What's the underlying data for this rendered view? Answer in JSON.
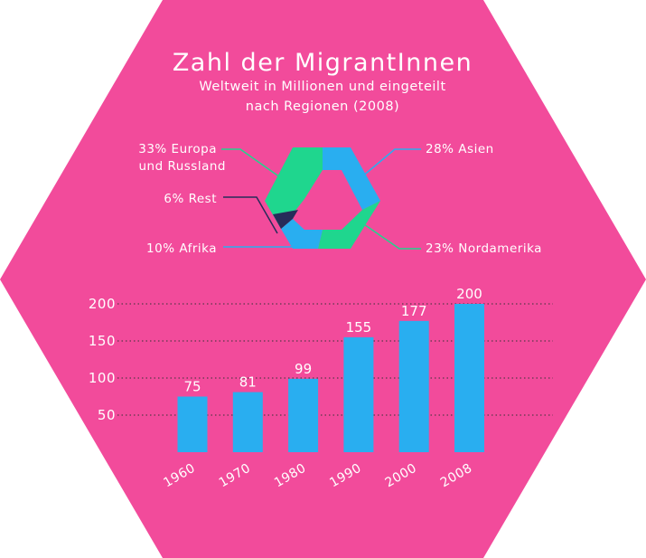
{
  "chart_data": [
    {
      "type": "donut",
      "title": "Zahl der MigrantInnen",
      "subtitle_lines": [
        "Weltweit in Millionen und eingeteilt",
        "nach Regionen (2008)"
      ],
      "slices": [
        {
          "label": "28% Asien",
          "value": 28,
          "color": "#29aef0"
        },
        {
          "label": "23% Nordamerika",
          "value": 23,
          "color": "#1fd68e"
        },
        {
          "label": "10% Afrika",
          "value": 10,
          "color": "#29aef0"
        },
        {
          "label": "6% Rest",
          "value": 6,
          "color": "#272c5a"
        },
        {
          "label_lines": [
            "33% Europa",
            "und Russland"
          ],
          "value": 33,
          "color": "#1fd68e"
        }
      ]
    },
    {
      "type": "bar",
      "categories": [
        "1960",
        "1970",
        "1980",
        "1990",
        "2000",
        "2008"
      ],
      "values": [
        75,
        81,
        99,
        155,
        177,
        200
      ],
      "value_labels": [
        "75",
        "81",
        "99",
        "155",
        "177",
        "200"
      ],
      "yticks": [
        50,
        100,
        150,
        200
      ],
      "ytick_labels": [
        "50",
        "100",
        "150",
        "200"
      ],
      "ylim": [
        0,
        200
      ],
      "grid": true,
      "bar_color": "#29aef0"
    }
  ],
  "colors": {
    "background": "#f24b9b",
    "europe_line": "#1fd68e",
    "rest_line": "#272c5a",
    "africa_line": "#29aef0"
  }
}
